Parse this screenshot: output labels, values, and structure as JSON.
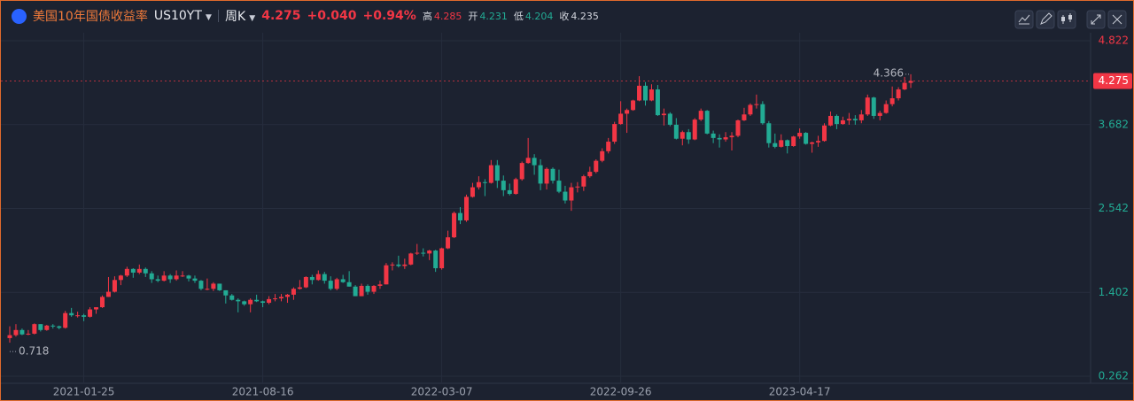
{
  "header": {
    "name": "美国10年国债收益率",
    "symbol": "US10YT",
    "period": "周K",
    "price": 4.275,
    "change": {
      "value": 0.04,
      "label": "+0.040"
    },
    "change_pct": {
      "value": 0.94,
      "label": "+0.94%"
    },
    "stats": [
      {
        "label": "高",
        "value": 4.285,
        "color": "#f23645"
      },
      {
        "label": "开",
        "value": 4.231,
        "color": "#22ab94"
      },
      {
        "label": "低",
        "value": 4.204,
        "color": "#22ab94"
      },
      {
        "label": "收",
        "value": 4.235,
        "color": "#d1d4dc"
      }
    ]
  },
  "chart_data": {
    "type": "candlestick",
    "up_color": "#f23645",
    "down_color": "#22ab94",
    "grid": true,
    "ylim": [
      0.262,
      4.822
    ],
    "yticks": [
      4.822,
      3.682,
      2.542,
      1.402,
      0.262
    ],
    "annotations": {
      "high": 4.366,
      "low": 0.718
    },
    "categories": [
      null,
      null,
      null,
      null,
      null,
      null,
      null,
      null,
      null,
      null,
      null,
      null,
      "2021-01-25",
      null,
      null,
      null,
      null,
      null,
      null,
      null,
      null,
      null,
      null,
      null,
      null,
      null,
      null,
      null,
      null,
      null,
      null,
      null,
      null,
      null,
      null,
      null,
      null,
      null,
      null,
      null,
      null,
      "2021-08-16",
      null,
      null,
      null,
      null,
      null,
      null,
      null,
      null,
      null,
      null,
      null,
      null,
      null,
      null,
      null,
      null,
      null,
      null,
      null,
      null,
      null,
      null,
      null,
      null,
      null,
      null,
      null,
      null,
      "2022-03-07",
      null,
      null,
      null,
      null,
      null,
      null,
      null,
      null,
      null,
      null,
      null,
      null,
      null,
      null,
      null,
      null,
      null,
      null,
      null,
      null,
      null,
      null,
      null,
      null,
      null,
      null,
      null,
      null,
      "2022-09-26",
      null,
      null,
      null,
      null,
      null,
      null,
      null,
      null,
      null,
      null,
      null,
      null,
      null,
      null,
      null,
      null,
      null,
      null,
      null,
      null,
      null,
      null,
      null,
      null,
      null,
      null,
      null,
      null,
      "2023-04-17",
      null,
      null,
      null,
      null,
      null,
      null,
      null,
      null,
      null,
      null,
      null,
      null,
      null,
      null,
      null,
      null,
      null,
      null
    ],
    "ohlc": [
      [
        0.78,
        0.94,
        0.718,
        0.82
      ],
      [
        0.82,
        0.97,
        0.8,
        0.89
      ],
      [
        0.89,
        0.91,
        0.82,
        0.83
      ],
      [
        0.83,
        0.89,
        0.82,
        0.84
      ],
      [
        0.84,
        0.98,
        0.83,
        0.97
      ],
      [
        0.97,
        0.97,
        0.87,
        0.89
      ],
      [
        0.89,
        0.96,
        0.88,
        0.95
      ],
      [
        0.95,
        0.97,
        0.91,
        0.94
      ],
      [
        0.94,
        0.95,
        0.9,
        0.92
      ],
      [
        0.92,
        1.15,
        0.91,
        1.12
      ],
      [
        1.12,
        1.19,
        1.07,
        1.09
      ],
      [
        1.09,
        1.14,
        1.06,
        1.09
      ],
      [
        1.09,
        1.11,
        1.01,
        1.07
      ],
      [
        1.07,
        1.2,
        1.06,
        1.17
      ],
      [
        1.17,
        1.2,
        1.11,
        1.2
      ],
      [
        1.2,
        1.36,
        1.19,
        1.34
      ],
      [
        1.34,
        1.61,
        1.34,
        1.41
      ],
      [
        1.41,
        1.62,
        1.4,
        1.57
      ],
      [
        1.57,
        1.64,
        1.5,
        1.63
      ],
      [
        1.63,
        1.75,
        1.61,
        1.72
      ],
      [
        1.72,
        1.73,
        1.6,
        1.67
      ],
      [
        1.67,
        1.78,
        1.65,
        1.72
      ],
      [
        1.72,
        1.74,
        1.61,
        1.66
      ],
      [
        1.66,
        1.69,
        1.53,
        1.58
      ],
      [
        1.58,
        1.63,
        1.54,
        1.56
      ],
      [
        1.56,
        1.69,
        1.55,
        1.63
      ],
      [
        1.63,
        1.65,
        1.53,
        1.58
      ],
      [
        1.58,
        1.7,
        1.56,
        1.63
      ],
      [
        1.63,
        1.69,
        1.61,
        1.63
      ],
      [
        1.63,
        1.64,
        1.55,
        1.59
      ],
      [
        1.59,
        1.63,
        1.53,
        1.56
      ],
      [
        1.56,
        1.57,
        1.43,
        1.45
      ],
      [
        1.45,
        1.59,
        1.43,
        1.45
      ],
      [
        1.45,
        1.54,
        1.42,
        1.52
      ],
      [
        1.52,
        1.52,
        1.42,
        1.43
      ],
      [
        1.43,
        1.43,
        1.25,
        1.36
      ],
      [
        1.36,
        1.38,
        1.29,
        1.3
      ],
      [
        1.3,
        1.32,
        1.13,
        1.28
      ],
      [
        1.28,
        1.29,
        1.22,
        1.24
      ],
      [
        1.24,
        1.32,
        1.13,
        1.3
      ],
      [
        1.3,
        1.37,
        1.27,
        1.28
      ],
      [
        1.28,
        1.29,
        1.2,
        1.26
      ],
      [
        1.26,
        1.35,
        1.24,
        1.31
      ],
      [
        1.31,
        1.38,
        1.28,
        1.32
      ],
      [
        1.32,
        1.38,
        1.28,
        1.34
      ],
      [
        1.34,
        1.38,
        1.26,
        1.37
      ],
      [
        1.37,
        1.47,
        1.3,
        1.45
      ],
      [
        1.45,
        1.57,
        1.44,
        1.47
      ],
      [
        1.47,
        1.62,
        1.46,
        1.61
      ],
      [
        1.61,
        1.64,
        1.51,
        1.57
      ],
      [
        1.57,
        1.7,
        1.56,
        1.65
      ],
      [
        1.65,
        1.68,
        1.52,
        1.56
      ],
      [
        1.56,
        1.62,
        1.43,
        1.45
      ],
      [
        1.45,
        1.6,
        1.43,
        1.58
      ],
      [
        1.58,
        1.64,
        1.53,
        1.54
      ],
      [
        1.54,
        1.69,
        1.48,
        1.48
      ],
      [
        1.48,
        1.5,
        1.35,
        1.35
      ],
      [
        1.35,
        1.52,
        1.35,
        1.49
      ],
      [
        1.49,
        1.51,
        1.37,
        1.41
      ],
      [
        1.41,
        1.5,
        1.38,
        1.49
      ],
      [
        1.49,
        1.56,
        1.45,
        1.51
      ],
      [
        1.51,
        1.8,
        1.51,
        1.77
      ],
      [
        1.77,
        1.81,
        1.7,
        1.78
      ],
      [
        1.78,
        1.9,
        1.74,
        1.76
      ],
      [
        1.76,
        1.86,
        1.72,
        1.78
      ],
      [
        1.78,
        1.94,
        1.77,
        1.93
      ],
      [
        1.93,
        2.06,
        1.91,
        1.94
      ],
      [
        1.94,
        2.0,
        1.89,
        1.93
      ],
      [
        1.93,
        1.98,
        1.84,
        1.97
      ],
      [
        1.97,
        1.98,
        1.68,
        1.73
      ],
      [
        1.73,
        2.01,
        1.71,
        2.0
      ],
      [
        2.0,
        2.24,
        1.99,
        2.15
      ],
      [
        2.15,
        2.5,
        2.14,
        2.48
      ],
      [
        2.48,
        2.56,
        2.33,
        2.38
      ],
      [
        2.38,
        2.73,
        2.36,
        2.7
      ],
      [
        2.7,
        2.89,
        2.69,
        2.83
      ],
      [
        2.83,
        2.98,
        2.8,
        2.9
      ],
      [
        2.9,
        2.94,
        2.71,
        2.89
      ],
      [
        2.89,
        3.2,
        2.88,
        3.13
      ],
      [
        3.13,
        3.2,
        2.82,
        2.92
      ],
      [
        2.92,
        2.99,
        2.71,
        2.79
      ],
      [
        2.79,
        2.88,
        2.72,
        2.74
      ],
      [
        2.74,
        2.96,
        2.73,
        2.94
      ],
      [
        2.94,
        3.18,
        2.92,
        3.16
      ],
      [
        3.16,
        3.5,
        3.15,
        3.23
      ],
      [
        3.23,
        3.28,
        3.0,
        3.13
      ],
      [
        3.13,
        3.21,
        2.79,
        2.88
      ],
      [
        2.88,
        3.1,
        2.8,
        3.08
      ],
      [
        3.08,
        3.1,
        2.88,
        2.92
      ],
      [
        2.92,
        3.07,
        2.75,
        2.77
      ],
      [
        2.77,
        2.85,
        2.61,
        2.65
      ],
      [
        2.65,
        2.89,
        2.51,
        2.83
      ],
      [
        2.83,
        2.9,
        2.76,
        2.84
      ],
      [
        2.84,
        3.0,
        2.78,
        2.98
      ],
      [
        2.98,
        3.11,
        2.96,
        3.04
      ],
      [
        3.04,
        3.21,
        3.02,
        3.19
      ],
      [
        3.19,
        3.36,
        3.17,
        3.32
      ],
      [
        3.32,
        3.5,
        3.29,
        3.45
      ],
      [
        3.45,
        3.72,
        3.42,
        3.69
      ],
      [
        3.69,
        4.0,
        3.68,
        3.83
      ],
      [
        3.83,
        3.9,
        3.57,
        3.88
      ],
      [
        3.88,
        4.02,
        3.87,
        4.01
      ],
      [
        4.01,
        4.34,
        4.0,
        4.21
      ],
      [
        4.21,
        4.26,
        3.94,
        4.01
      ],
      [
        4.01,
        4.23,
        4.0,
        4.16
      ],
      [
        4.16,
        4.22,
        3.8,
        3.81
      ],
      [
        3.81,
        3.9,
        3.67,
        3.83
      ],
      [
        3.83,
        3.85,
        3.66,
        3.68
      ],
      [
        3.68,
        3.77,
        3.48,
        3.49
      ],
      [
        3.49,
        3.6,
        3.4,
        3.58
      ],
      [
        3.58,
        3.62,
        3.42,
        3.48
      ],
      [
        3.48,
        3.77,
        3.47,
        3.75
      ],
      [
        3.75,
        3.9,
        3.73,
        3.87
      ],
      [
        3.87,
        3.88,
        3.55,
        3.56
      ],
      [
        3.56,
        3.6,
        3.43,
        3.5
      ],
      [
        3.5,
        3.55,
        3.37,
        3.48
      ],
      [
        3.48,
        3.58,
        3.45,
        3.51
      ],
      [
        3.51,
        3.58,
        3.33,
        3.53
      ],
      [
        3.53,
        3.75,
        3.51,
        3.74
      ],
      [
        3.74,
        3.91,
        3.73,
        3.82
      ],
      [
        3.82,
        3.97,
        3.8,
        3.95
      ],
      [
        3.95,
        4.09,
        3.9,
        3.96
      ],
      [
        3.96,
        4.0,
        3.68,
        3.7
      ],
      [
        3.7,
        3.73,
        3.37,
        3.43
      ],
      [
        3.43,
        3.56,
        3.36,
        3.38
      ],
      [
        3.38,
        3.55,
        3.37,
        3.47
      ],
      [
        3.47,
        3.48,
        3.29,
        3.39
      ],
      [
        3.39,
        3.53,
        3.38,
        3.52
      ],
      [
        3.52,
        3.63,
        3.49,
        3.57
      ],
      [
        3.57,
        3.58,
        3.41,
        3.42
      ],
      [
        3.42,
        3.45,
        3.3,
        3.44
      ],
      [
        3.44,
        3.53,
        3.38,
        3.46
      ],
      [
        3.46,
        3.7,
        3.45,
        3.67
      ],
      [
        3.67,
        3.86,
        3.66,
        3.8
      ],
      [
        3.8,
        3.82,
        3.62,
        3.69
      ],
      [
        3.69,
        3.79,
        3.68,
        3.74
      ],
      [
        3.74,
        3.84,
        3.68,
        3.76
      ],
      [
        3.76,
        3.81,
        3.68,
        3.74
      ],
      [
        3.74,
        3.88,
        3.7,
        3.82
      ],
      [
        3.82,
        4.09,
        3.8,
        4.05
      ],
      [
        4.05,
        4.06,
        3.76,
        3.8
      ],
      [
        3.8,
        3.87,
        3.74,
        3.84
      ],
      [
        3.84,
        4.01,
        3.83,
        3.96
      ],
      [
        3.96,
        4.2,
        3.93,
        4.04
      ],
      [
        4.04,
        4.19,
        4.01,
        4.16
      ],
      [
        4.16,
        4.33,
        4.15,
        4.25
      ],
      [
        4.25,
        4.366,
        4.18,
        4.275
      ]
    ]
  }
}
